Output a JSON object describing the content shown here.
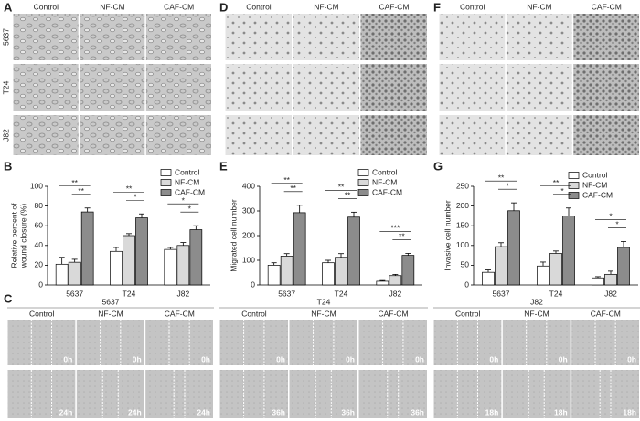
{
  "panel_labels": [
    "A",
    "B",
    "C",
    "D",
    "E",
    "F",
    "G"
  ],
  "image_panels": [
    {
      "columns": [
        "Control",
        "NF-CM",
        "CAF-CM"
      ],
      "rows": [
        "5637",
        "T24",
        "J82"
      ]
    },
    {
      "columns": [
        "Control",
        "NF-CM",
        "CAF-CM"
      ]
    },
    {
      "columns": [
        "Control",
        "NF-CM",
        "CAF-CM"
      ]
    }
  ],
  "wound_panel": {
    "columns": [
      "Control",
      "NF-CM",
      "CAF-CM"
    ],
    "groups": [
      {
        "name": "5637",
        "times": [
          "0h",
          "24h"
        ]
      },
      {
        "name": "T24",
        "times": [
          "0h",
          "36h"
        ]
      },
      {
        "name": "J82",
        "times": [
          "0h",
          "18h"
        ]
      }
    ]
  },
  "chart_data": [
    {
      "type": "bar",
      "y_label": [
        "Relative percent of",
        "wound closure (%)"
      ],
      "categories": [
        "5637",
        "T24",
        "J82"
      ],
      "series": [
        {
          "name": "Control",
          "color": "#ffffff",
          "values": [
            21,
            34,
            36
          ],
          "errors": [
            7,
            4,
            2
          ]
        },
        {
          "name": "NF-CM",
          "color": "#d9d9d9",
          "values": [
            23,
            50,
            40
          ],
          "errors": [
            3,
            2,
            3
          ]
        },
        {
          "name": "CAF-CM",
          "color": "#8c8c8c",
          "values": [
            74,
            68,
            56
          ],
          "errors": [
            4,
            4,
            4
          ]
        }
      ],
      "ylim": [
        0,
        100
      ],
      "yticks": [
        0,
        20,
        40,
        60,
        80,
        100
      ],
      "significance": [
        {
          "category": 0,
          "pair": [
            0,
            2
          ],
          "label": "**"
        },
        {
          "category": 0,
          "pair": [
            1,
            2
          ],
          "label": "**"
        },
        {
          "category": 1,
          "pair": [
            0,
            2
          ],
          "label": "**"
        },
        {
          "category": 1,
          "pair": [
            1,
            2
          ],
          "label": "*"
        },
        {
          "category": 2,
          "pair": [
            0,
            2
          ],
          "label": "*"
        },
        {
          "category": 2,
          "pair": [
            1,
            2
          ],
          "label": "*"
        }
      ]
    },
    {
      "type": "bar",
      "y_label": "Migrated cell number",
      "categories": [
        "5637",
        "T24",
        "J82"
      ],
      "series": [
        {
          "name": "Control",
          "color": "#ffffff",
          "values": [
            80,
            90,
            15
          ],
          "errors": [
            10,
            10,
            3
          ]
        },
        {
          "name": "NF-CM",
          "color": "#d9d9d9",
          "values": [
            117,
            112,
            38
          ],
          "errors": [
            10,
            15,
            5
          ]
        },
        {
          "name": "CAF-CM",
          "color": "#8c8c8c",
          "values": [
            293,
            275,
            120
          ],
          "errors": [
            30,
            20,
            8
          ]
        }
      ],
      "ylim": [
        0,
        400
      ],
      "yticks": [
        0,
        100,
        200,
        300,
        400
      ],
      "significance": [
        {
          "category": 0,
          "pair": [
            0,
            2
          ],
          "label": "**"
        },
        {
          "category": 0,
          "pair": [
            1,
            2
          ],
          "label": "**"
        },
        {
          "category": 1,
          "pair": [
            0,
            2
          ],
          "label": "**"
        },
        {
          "category": 1,
          "pair": [
            1,
            2
          ],
          "label": "**"
        },
        {
          "category": 2,
          "pair": [
            0,
            2
          ],
          "label": "***"
        },
        {
          "category": 2,
          "pair": [
            1,
            2
          ],
          "label": "**"
        }
      ]
    },
    {
      "type": "bar",
      "y_label": "Invasive cell number",
      "categories": [
        "5637",
        "T24",
        "J82"
      ],
      "series": [
        {
          "name": "Control",
          "color": "#ffffff",
          "values": [
            32,
            48,
            18
          ],
          "errors": [
            6,
            10,
            3
          ]
        },
        {
          "name": "NF-CM",
          "color": "#d9d9d9",
          "values": [
            97,
            80,
            27
          ],
          "errors": [
            10,
            6,
            8
          ]
        },
        {
          "name": "CAF-CM",
          "color": "#8c8c8c",
          "values": [
            188,
            175,
            95
          ],
          "errors": [
            20,
            20,
            15
          ]
        }
      ],
      "ylim": [
        0,
        250
      ],
      "yticks": [
        0,
        50,
        100,
        150,
        200,
        250
      ],
      "significance": [
        {
          "category": 0,
          "pair": [
            0,
            2
          ],
          "label": "**"
        },
        {
          "category": 0,
          "pair": [
            1,
            2
          ],
          "label": "*"
        },
        {
          "category": 1,
          "pair": [
            0,
            2
          ],
          "label": "**"
        },
        {
          "category": 1,
          "pair": [
            1,
            2
          ],
          "label": "*"
        },
        {
          "category": 2,
          "pair": [
            0,
            2
          ],
          "label": "*"
        },
        {
          "category": 2,
          "pair": [
            1,
            2
          ],
          "label": "*"
        }
      ]
    }
  ]
}
